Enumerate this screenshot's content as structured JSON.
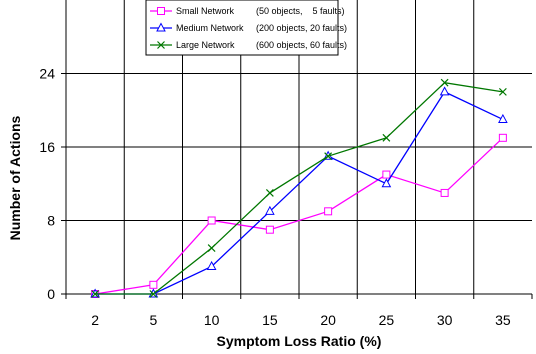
{
  "chart_data": {
    "type": "line",
    "categories": [
      "2",
      "5",
      "10",
      "15",
      "20",
      "25",
      "30",
      "35"
    ],
    "series": [
      {
        "name": "Small Network",
        "detail": "(50 objects,    5 faults)",
        "color": "#ff00ff",
        "marker": "square",
        "values": [
          0,
          1,
          8,
          7,
          9,
          13,
          11,
          17
        ]
      },
      {
        "name": "Medium Network",
        "detail": "(200 objects, 20 faults)",
        "color": "#0000ff",
        "marker": "triangle",
        "values": [
          0,
          0,
          3,
          9,
          15,
          12,
          22,
          19
        ]
      },
      {
        "name": "Large Network",
        "detail": "(600 objects, 60 faults)",
        "color": "#007700",
        "marker": "x",
        "values": [
          0,
          0,
          5,
          11,
          15,
          17,
          23,
          22
        ]
      }
    ],
    "xlabel": "Symptom Loss Ratio (%)",
    "ylabel": "Number of Actions",
    "ylim": [
      0,
      32
    ],
    "yticks": [
      0,
      8,
      16,
      24
    ],
    "grid": true,
    "legend": "top-center"
  }
}
